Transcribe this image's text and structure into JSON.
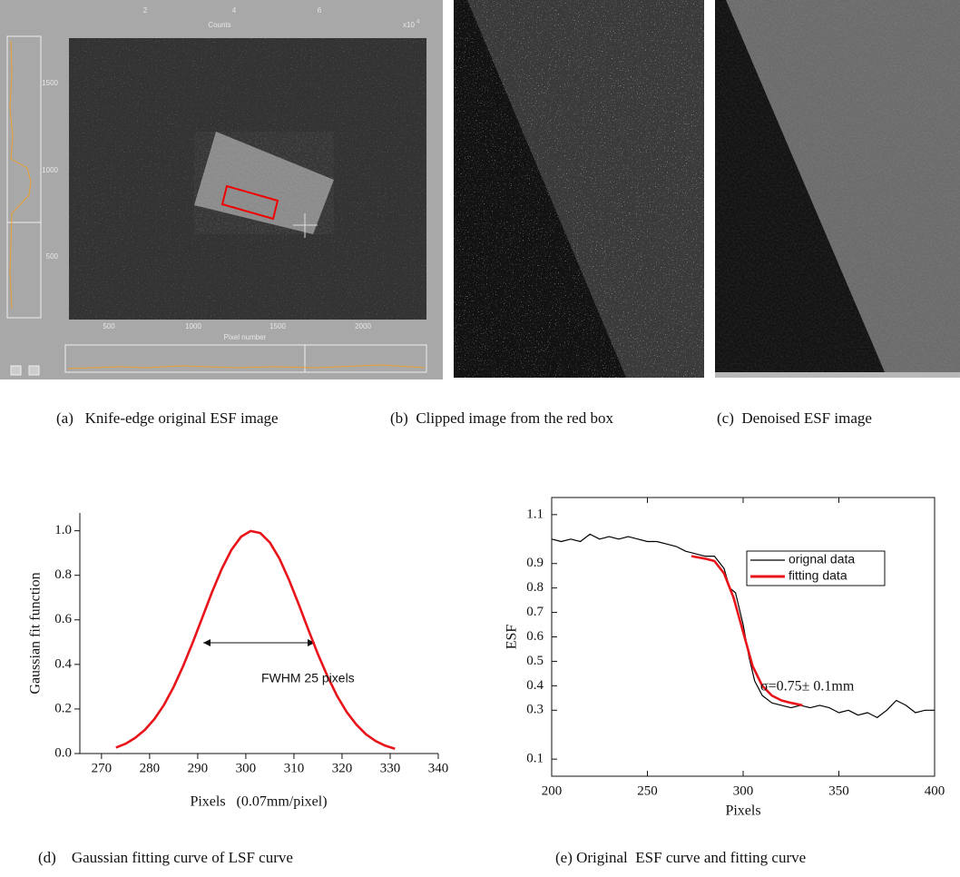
{
  "panels": {
    "a": {
      "caption": "(a)   Knife-edge original ESF image",
      "top_ticks": [
        "2",
        "4",
        "6"
      ],
      "top_label": "Counts",
      "top_exponent": "x10",
      "exponent_power": "4",
      "left_ticks": [
        "1500",
        "1000",
        "500"
      ],
      "bottom_ticks": [
        "500",
        "1000",
        "1500",
        "2000"
      ],
      "bottom_label": "Pixel number"
    },
    "b": {
      "caption": "(b)  Clipped image from the red box"
    },
    "c": {
      "caption": "(c)  Denoised ESF image"
    }
  },
  "chart_data": [
    {
      "type": "line",
      "caption": "(d)    Gaussian fitting curve of LSF curve",
      "x_label": "Pixels   (0.07mm/pixel)",
      "y_label": "Gaussian fit function",
      "annotation": "FWHM 25 pixels",
      "x": [
        273,
        275,
        277,
        279,
        281,
        283,
        285,
        287,
        289,
        291,
        293,
        295,
        297,
        299,
        301,
        303,
        305,
        307,
        309,
        311,
        313,
        315,
        317,
        319,
        321,
        323,
        325,
        327,
        329,
        331
      ],
      "series": [
        {
          "color": "#e8141a",
          "values": [
            0.027,
            0.044,
            0.07,
            0.106,
            0.155,
            0.219,
            0.299,
            0.394,
            0.5,
            0.613,
            0.726,
            0.829,
            0.914,
            0.973,
            0.999,
            0.99,
            0.947,
            0.875,
            0.779,
            0.67,
            0.556,
            0.446,
            0.345,
            0.257,
            0.185,
            0.129,
            0.086,
            0.056,
            0.035,
            0.021
          ]
        }
      ],
      "xlim": [
        265.5,
        340
      ],
      "ylim": [
        0,
        1.08
      ],
      "xticks": [
        270,
        280,
        290,
        300,
        310,
        320,
        330,
        340
      ],
      "yticks": [
        {
          "value": 0,
          "label": "0.0"
        },
        0.2,
        0.4,
        0.6,
        0.8,
        {
          "value": 1,
          "label": "1.0"
        }
      ],
      "frame": false
    },
    {
      "type": "line",
      "caption": "(e) Original  ESF curve and fitting curve",
      "x_label": "Pixels",
      "y_label": "ESF",
      "annotation": "σ=0.75± 0.1mm",
      "series": [
        {
          "name": "orignal data",
          "color": "#000000",
          "x": [
            200,
            205,
            210,
            215,
            220,
            225,
            230,
            235,
            240,
            245,
            250,
            255,
            260,
            265,
            270,
            275,
            280,
            285,
            290,
            293,
            296,
            300,
            303,
            306,
            310,
            315,
            320,
            325,
            330,
            335,
            340,
            345,
            350,
            355,
            360,
            365,
            370,
            375,
            380,
            385,
            390,
            395,
            400
          ],
          "values": [
            1.0,
            0.99,
            1.0,
            0.99,
            1.02,
            1.0,
            1.01,
            1.0,
            1.01,
            1.0,
            0.99,
            0.99,
            0.98,
            0.97,
            0.95,
            0.94,
            0.93,
            0.93,
            0.88,
            0.8,
            0.78,
            0.65,
            0.52,
            0.42,
            0.36,
            0.33,
            0.32,
            0.31,
            0.32,
            0.31,
            0.32,
            0.31,
            0.29,
            0.3,
            0.28,
            0.29,
            0.27,
            0.3,
            0.34,
            0.32,
            0.29,
            0.3,
            0.3
          ]
        },
        {
          "name": "fitting data",
          "color": "#e8141a",
          "x": [
            273,
            280,
            285,
            290,
            295,
            300,
            305,
            310,
            315,
            320,
            325,
            331
          ],
          "values": [
            0.93,
            0.92,
            0.91,
            0.86,
            0.76,
            0.62,
            0.48,
            0.4,
            0.36,
            0.34,
            0.33,
            0.32
          ]
        }
      ],
      "xlim": [
        200,
        400
      ],
      "ylim": [
        0.03,
        1.17
      ],
      "xticks": [
        200,
        250,
        300,
        350,
        400
      ],
      "yticks": [
        0.1,
        0.3,
        0.4,
        0.5,
        0.6,
        0.7,
        0.8,
        0.9,
        1.1
      ],
      "frame": true
    }
  ]
}
